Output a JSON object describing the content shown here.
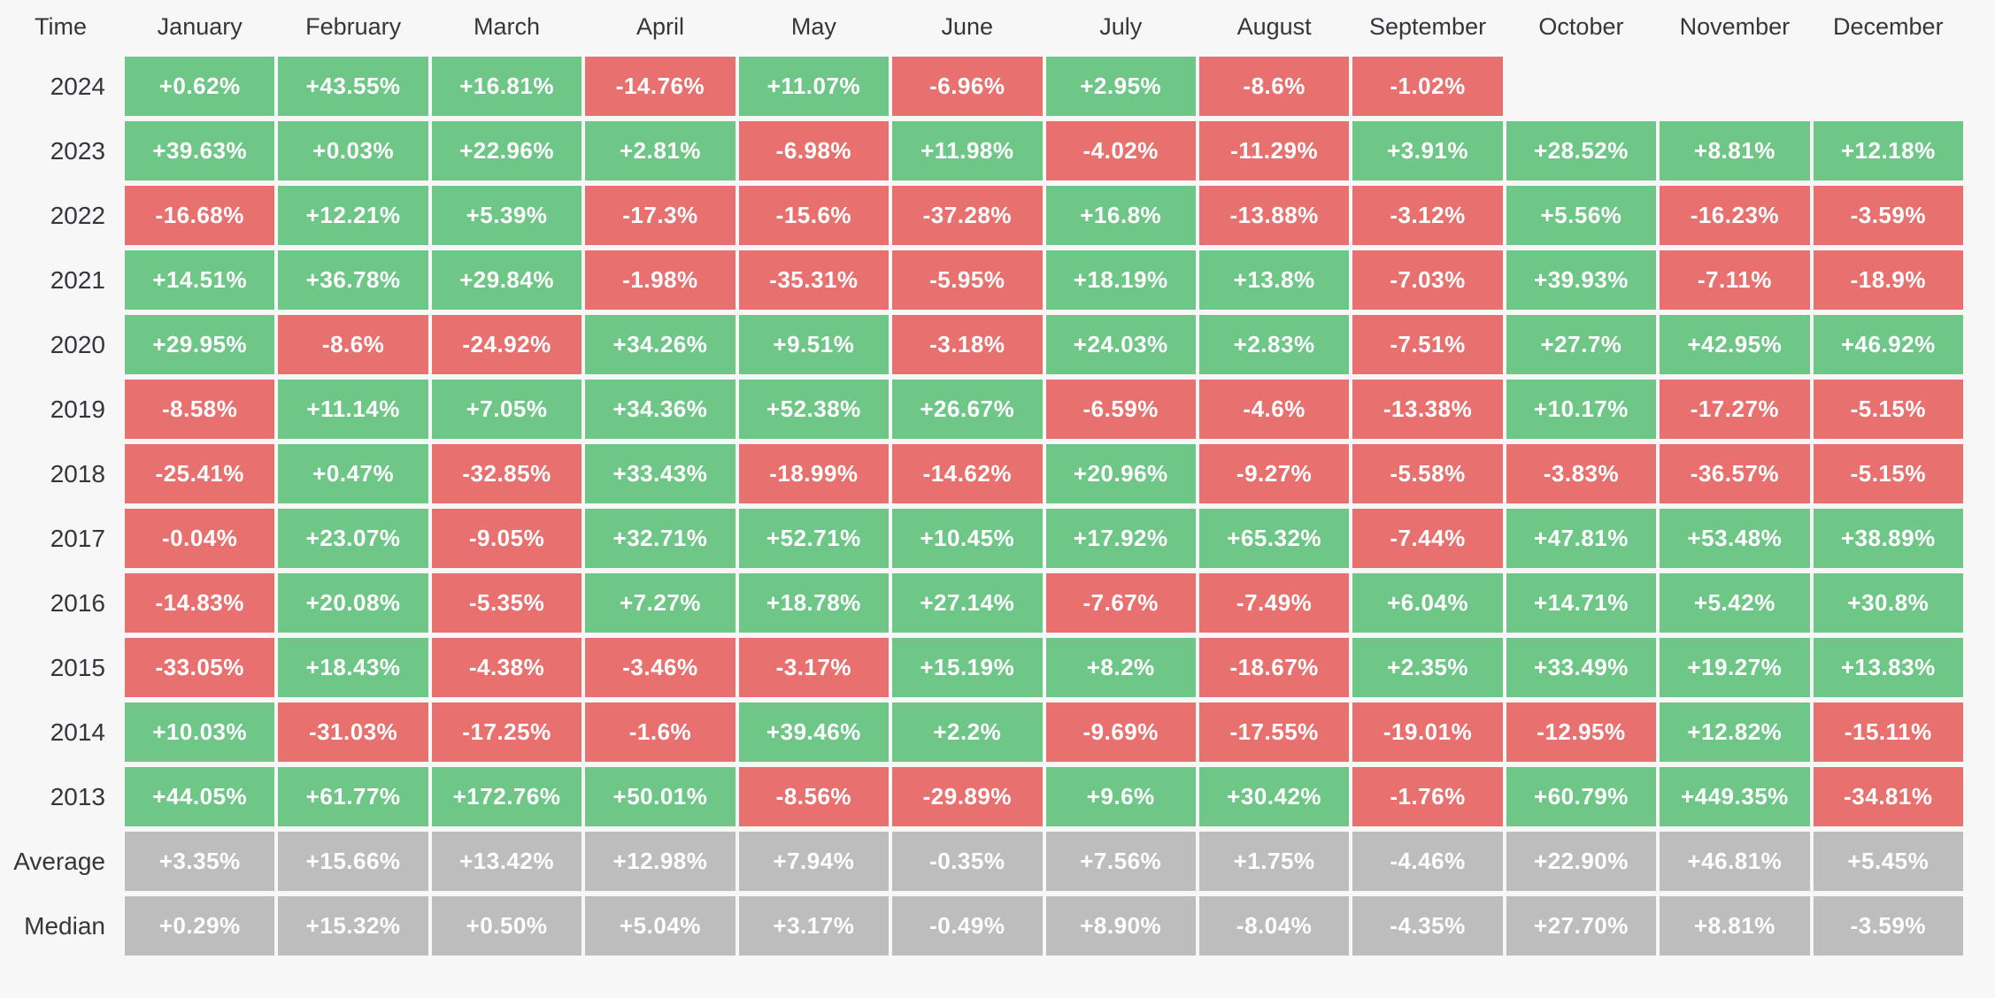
{
  "table": {
    "corner_label": "Time"
  },
  "colors": {
    "positive": "#6ec687",
    "negative": "#e8716f",
    "summary": "#bdbdbd",
    "background": "#f7f7f8",
    "cell_text": "#ffffff",
    "label_text": "#33373c"
  },
  "chart_data": {
    "type": "heatmap",
    "columns": [
      "January",
      "February",
      "March",
      "April",
      "May",
      "June",
      "July",
      "August",
      "September",
      "October",
      "November",
      "December"
    ],
    "rows": [
      {
        "label": "2024",
        "summary": false,
        "values": [
          "+0.62%",
          "+43.55%",
          "+16.81%",
          "-14.76%",
          "+11.07%",
          "-6.96%",
          "+2.95%",
          "-8.6%",
          "-1.02%",
          "",
          "",
          ""
        ]
      },
      {
        "label": "2023",
        "summary": false,
        "values": [
          "+39.63%",
          "+0.03%",
          "+22.96%",
          "+2.81%",
          "-6.98%",
          "+11.98%",
          "-4.02%",
          "-11.29%",
          "+3.91%",
          "+28.52%",
          "+8.81%",
          "+12.18%"
        ]
      },
      {
        "label": "2022",
        "summary": false,
        "values": [
          "-16.68%",
          "+12.21%",
          "+5.39%",
          "-17.3%",
          "-15.6%",
          "-37.28%",
          "+16.8%",
          "-13.88%",
          "-3.12%",
          "+5.56%",
          "-16.23%",
          "-3.59%"
        ]
      },
      {
        "label": "2021",
        "summary": false,
        "values": [
          "+14.51%",
          "+36.78%",
          "+29.84%",
          "-1.98%",
          "-35.31%",
          "-5.95%",
          "+18.19%",
          "+13.8%",
          "-7.03%",
          "+39.93%",
          "-7.11%",
          "-18.9%"
        ]
      },
      {
        "label": "2020",
        "summary": false,
        "values": [
          "+29.95%",
          "-8.6%",
          "-24.92%",
          "+34.26%",
          "+9.51%",
          "-3.18%",
          "+24.03%",
          "+2.83%",
          "-7.51%",
          "+27.7%",
          "+42.95%",
          "+46.92%"
        ]
      },
      {
        "label": "2019",
        "summary": false,
        "values": [
          "-8.58%",
          "+11.14%",
          "+7.05%",
          "+34.36%",
          "+52.38%",
          "+26.67%",
          "-6.59%",
          "-4.6%",
          "-13.38%",
          "+10.17%",
          "-17.27%",
          "-5.15%"
        ]
      },
      {
        "label": "2018",
        "summary": false,
        "values": [
          "-25.41%",
          "+0.47%",
          "-32.85%",
          "+33.43%",
          "-18.99%",
          "-14.62%",
          "+20.96%",
          "-9.27%",
          "-5.58%",
          "-3.83%",
          "-36.57%",
          "-5.15%"
        ]
      },
      {
        "label": "2017",
        "summary": false,
        "values": [
          "-0.04%",
          "+23.07%",
          "-9.05%",
          "+32.71%",
          "+52.71%",
          "+10.45%",
          "+17.92%",
          "+65.32%",
          "-7.44%",
          "+47.81%",
          "+53.48%",
          "+38.89%"
        ]
      },
      {
        "label": "2016",
        "summary": false,
        "values": [
          "-14.83%",
          "+20.08%",
          "-5.35%",
          "+7.27%",
          "+18.78%",
          "+27.14%",
          "-7.67%",
          "-7.49%",
          "+6.04%",
          "+14.71%",
          "+5.42%",
          "+30.8%"
        ]
      },
      {
        "label": "2015",
        "summary": false,
        "values": [
          "-33.05%",
          "+18.43%",
          "-4.38%",
          "-3.46%",
          "-3.17%",
          "+15.19%",
          "+8.2%",
          "-18.67%",
          "+2.35%",
          "+33.49%",
          "+19.27%",
          "+13.83%"
        ]
      },
      {
        "label": "2014",
        "summary": false,
        "values": [
          "+10.03%",
          "-31.03%",
          "-17.25%",
          "-1.6%",
          "+39.46%",
          "+2.2%",
          "-9.69%",
          "-17.55%",
          "-19.01%",
          "-12.95%",
          "+12.82%",
          "-15.11%"
        ]
      },
      {
        "label": "2013",
        "summary": false,
        "values": [
          "+44.05%",
          "+61.77%",
          "+172.76%",
          "+50.01%",
          "-8.56%",
          "-29.89%",
          "+9.6%",
          "+30.42%",
          "-1.76%",
          "+60.79%",
          "+449.35%",
          "-34.81%"
        ]
      },
      {
        "label": "Average",
        "summary": true,
        "values": [
          "+3.35%",
          "+15.66%",
          "+13.42%",
          "+12.98%",
          "+7.94%",
          "-0.35%",
          "+7.56%",
          "+1.75%",
          "-4.46%",
          "+22.90%",
          "+46.81%",
          "+5.45%"
        ]
      },
      {
        "label": "Median",
        "summary": true,
        "values": [
          "+0.29%",
          "+15.32%",
          "+0.50%",
          "+5.04%",
          "+3.17%",
          "-0.49%",
          "+8.90%",
          "-8.04%",
          "-4.35%",
          "+27.70%",
          "+8.81%",
          "-3.59%"
        ]
      }
    ]
  }
}
